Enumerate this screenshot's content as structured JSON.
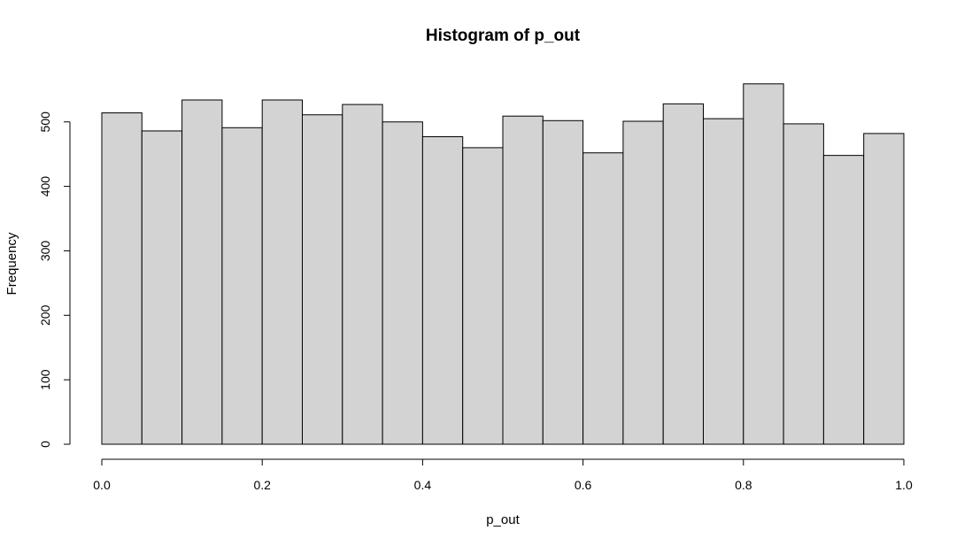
{
  "chart_data": {
    "type": "bar",
    "title": "Histogram of p_out",
    "xlabel": "p_out",
    "ylabel": "Frequency",
    "bin_edges": [
      0.0,
      0.05,
      0.1,
      0.15,
      0.2,
      0.25,
      0.3,
      0.35,
      0.4,
      0.45,
      0.5,
      0.55,
      0.6,
      0.65,
      0.7,
      0.75,
      0.8,
      0.85,
      0.9,
      0.95,
      1.0
    ],
    "values": [
      514,
      486,
      534,
      491,
      534,
      511,
      527,
      500,
      477,
      460,
      509,
      502,
      452,
      501,
      528,
      505,
      559,
      497,
      448,
      482
    ],
    "xlim": [
      0.0,
      1.0
    ],
    "ylim": [
      0,
      560
    ],
    "x_ticks": [
      "0.0",
      "0.2",
      "0.4",
      "0.6",
      "0.8",
      "1.0"
    ],
    "y_ticks": [
      "0",
      "100",
      "200",
      "300",
      "400",
      "500"
    ],
    "grid": false,
    "bar_color": "#d3d3d3",
    "edge_color": "#000000"
  }
}
